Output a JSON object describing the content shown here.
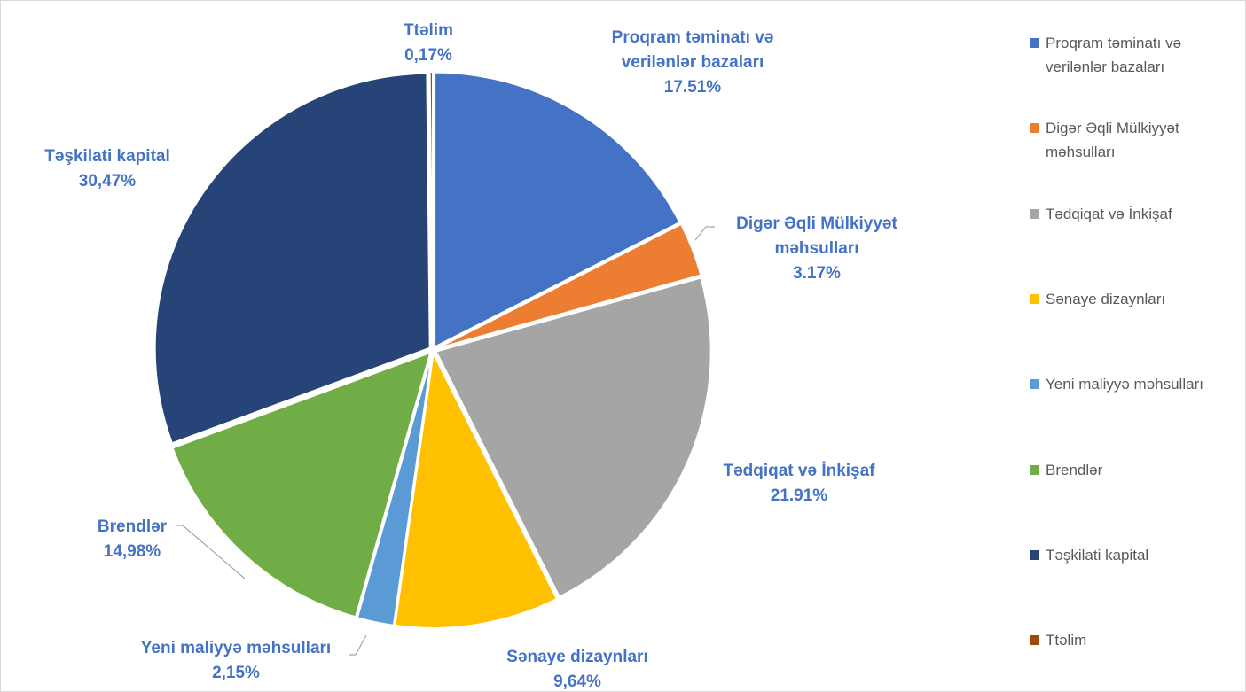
{
  "chart_data": {
    "type": "pie",
    "categories": [
      "Proqram təminatı və verilənlər bazaları",
      "Digər Əqli Mülkiyyət məhsulları",
      "Tədqiqat və İnkişaf",
      "Sənaye dizaynları",
      "Yeni maliyyə məhsulları",
      "Brendlər",
      "Təşkilati kapital",
      "Ttəlim"
    ],
    "values": [
      17.51,
      3.17,
      21.91,
      9.64,
      2.15,
      14.98,
      30.47,
      0.17
    ],
    "value_labels": [
      "17.51%",
      "3.17%",
      "21.91%",
      "9,64%",
      "2,15%",
      "14,98%",
      "30,47%",
      "0,17%"
    ],
    "colors": [
      "#4472c4",
      "#ed7d31",
      "#a5a5a5",
      "#ffc000",
      "#5b9bd5",
      "#70ad47",
      "#264478",
      "#9e480e"
    ],
    "legend": "right"
  }
}
